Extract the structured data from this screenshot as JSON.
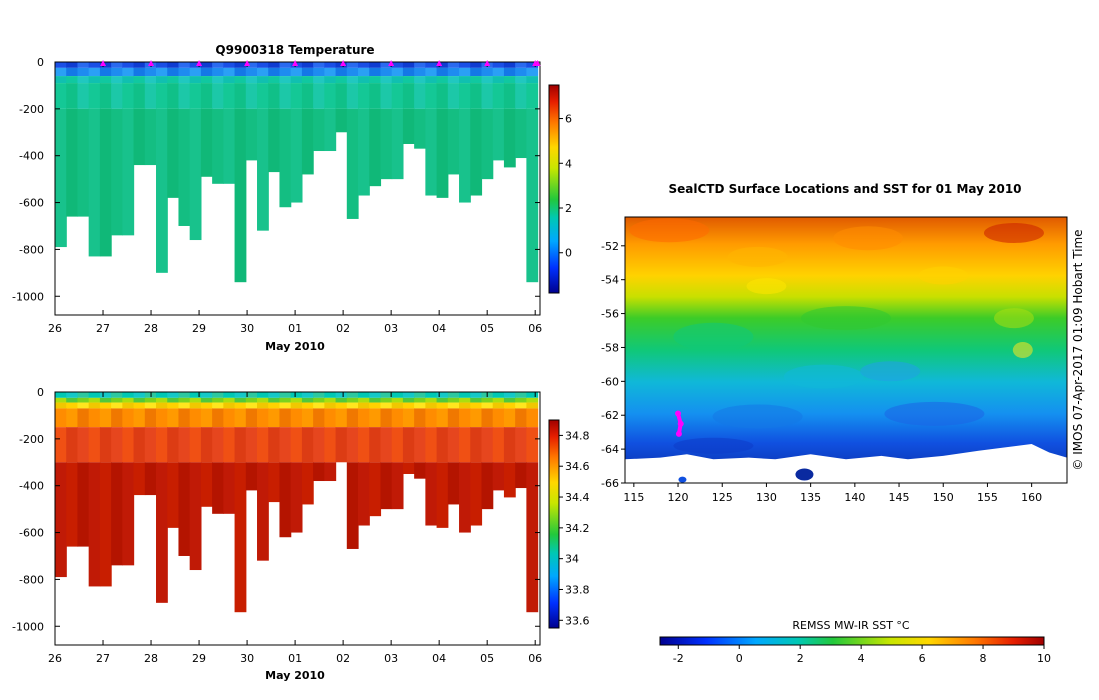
{
  "colors": {
    "marker": "#ff00ff",
    "land": "#ffffff"
  },
  "panels": {
    "temperature": {
      "title": "Q9900318  Temperature",
      "xlabel": "May 2010"
    },
    "salinity": {
      "title": "",
      "xlabel": "May 2010"
    },
    "map": {
      "title": "SealCTD Surface Locations and SST for 01 May 2010",
      "side_label": "© IMOS 07-Apr-2017 01:09 Hobart Time",
      "cbar_label": "REMSS MW-IR SST °C"
    }
  },
  "chart_data": [
    {
      "type": "heatmap",
      "title": "Q9900318  Temperature",
      "xlabel": "May 2010",
      "ylabel": "",
      "x_ticks": [
        "26",
        "27",
        "28",
        "29",
        "30",
        "01",
        "02",
        "03",
        "04",
        "05",
        "06"
      ],
      "xlim": [
        0,
        10.1
      ],
      "y_ticks": [
        0,
        -200,
        -400,
        -600,
        -800,
        -1000
      ],
      "ylim": [
        -1080,
        0
      ],
      "colorbar": {
        "ticks": [
          0,
          2,
          4,
          6
        ],
        "range": [
          -1.8,
          7.5
        ]
      },
      "profile_depths": [
        -790,
        -660,
        -660,
        -830,
        -830,
        -740,
        -740,
        -440,
        -440,
        -900,
        -580,
        -700,
        -760,
        -490,
        -520,
        -520,
        -940,
        -420,
        -720,
        -470,
        -620,
        -600,
        -480,
        -380,
        -380,
        -300,
        -670,
        -570,
        -530,
        -500,
        -500,
        -350,
        -370,
        -570,
        -580,
        -480,
        -600,
        -570,
        -500,
        -420,
        -450,
        -410,
        -940
      ],
      "surface_marker_x": [
        1,
        2,
        3,
        4,
        5,
        6,
        7,
        8,
        9,
        10,
        10.05
      ],
      "description": "Cold surface layer (about 0 to 1 °C, upper ~80 m) over warmer 2 to 3 °C water below"
    },
    {
      "type": "heatmap",
      "title": "",
      "xlabel": "May 2010",
      "ylabel": "",
      "x_ticks": [
        "26",
        "27",
        "28",
        "29",
        "30",
        "01",
        "02",
        "03",
        "04",
        "05",
        "06"
      ],
      "xlim": [
        0,
        10.1
      ],
      "y_ticks": [
        0,
        -200,
        -400,
        -600,
        -800,
        -1000
      ],
      "ylim": [
        -1080,
        0
      ],
      "colorbar": {
        "ticks": [
          33.6,
          33.8,
          34,
          34.2,
          34.4,
          34.6,
          34.8
        ],
        "range": [
          33.55,
          34.9
        ]
      },
      "profile_depths": [
        -790,
        -660,
        -660,
        -830,
        -830,
        -740,
        -740,
        -440,
        -440,
        -900,
        -580,
        -700,
        -760,
        -490,
        -520,
        -520,
        -940,
        -420,
        -720,
        -470,
        -620,
        -600,
        -480,
        -380,
        -380,
        -300,
        -670,
        -570,
        -530,
        -500,
        -500,
        -350,
        -370,
        -570,
        -580,
        -480,
        -600,
        -570,
        -500,
        -420,
        -450,
        -410,
        -940
      ],
      "description": "Fresher surface layer (about 33.8 to 34.2) over saltier 34.6 to 34.8 water below"
    },
    {
      "type": "heatmap",
      "title": "SealCTD Surface Locations and SST for 01 May 2010",
      "xlabel": "",
      "ylabel": "",
      "x_ticks": [
        115,
        120,
        125,
        130,
        135,
        140,
        145,
        150,
        155,
        160
      ],
      "xlim": [
        114,
        164
      ],
      "y_ticks": [
        -52,
        -54,
        -56,
        -58,
        -60,
        -62,
        -64,
        -66
      ],
      "ylim": [
        -66,
        -50.3
      ],
      "colorbar": {
        "label": "REMSS MW-IR SST °C",
        "ticks": [
          -2,
          0,
          2,
          4,
          6,
          8,
          10
        ],
        "range": [
          -2.6,
          10
        ]
      },
      "description": "Sea surface temperature decreasing from about 9 °C in the north to about -1 °C near the Antarctic coast",
      "seal_track": [
        [
          120,
          -61.9
        ],
        [
          120.3,
          -62.5
        ],
        [
          120.1,
          -63.1
        ]
      ]
    }
  ]
}
